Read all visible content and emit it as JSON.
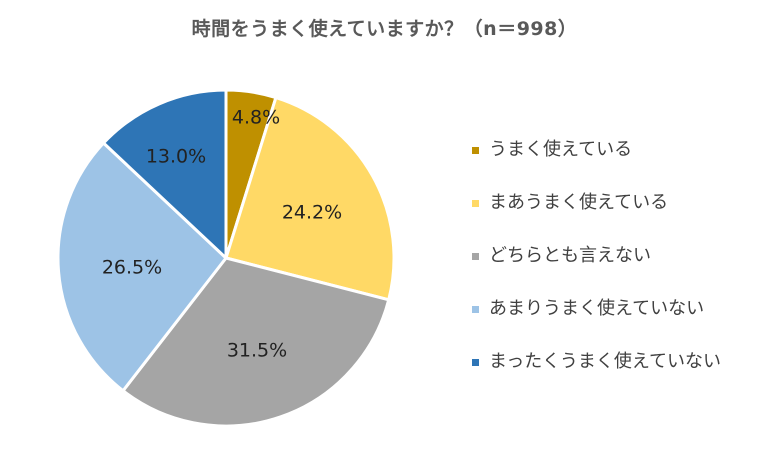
{
  "chart_data": {
    "type": "pie",
    "title": "時間をうまく使えていますか？（n＝998）",
    "categories": [
      "うまく使えている",
      "まあうまく使えている",
      "どちらとも言えない",
      "あまりうまく使えていない",
      "まったくうまく使えていない"
    ],
    "values": [
      4.8,
      24.2,
      31.5,
      26.5,
      13.0
    ],
    "value_labels": [
      "4.8%",
      "24.2%",
      "31.5%",
      "26.5%",
      "13.0%"
    ],
    "colors": [
      "#BF9000",
      "#FFD966",
      "#A5A5A5",
      "#9DC3E6",
      "#2E75B6"
    ],
    "legend_placement": "right"
  }
}
